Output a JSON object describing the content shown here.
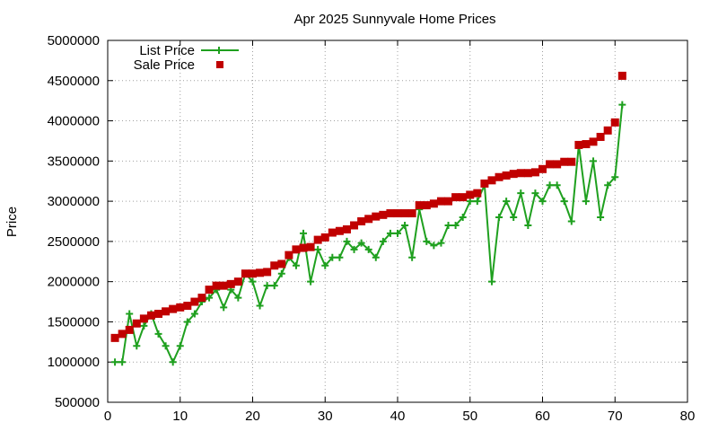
{
  "chart_data": {
    "type": "line",
    "title": "Apr 2025 Sunnyvale Home Prices",
    "xlabel": "",
    "ylabel": "Price",
    "xlim": [
      0,
      80
    ],
    "ylim": [
      500000,
      5000000
    ],
    "x_ticks": [
      "0",
      "10",
      "20",
      "30",
      "40",
      "50",
      "60",
      "70",
      "80"
    ],
    "y_ticks": [
      "500000",
      "1000000",
      "1500000",
      "2000000",
      "2500000",
      "3000000",
      "3500000",
      "4000000",
      "4500000",
      "5000000"
    ],
    "grid": true,
    "legend_position": "top-left",
    "series": [
      {
        "name": "List Price",
        "style": "line-with-plus-markers",
        "color": "#1fa01f",
        "x": [
          1,
          2,
          3,
          4,
          5,
          6,
          7,
          8,
          9,
          10,
          11,
          12,
          13,
          14,
          15,
          16,
          17,
          18,
          19,
          20,
          21,
          22,
          23,
          24,
          25,
          26,
          27,
          28,
          29,
          30,
          31,
          32,
          33,
          34,
          35,
          36,
          37,
          38,
          39,
          40,
          41,
          42,
          43,
          44,
          45,
          46,
          47,
          48,
          49,
          50,
          51,
          52,
          53,
          54,
          55,
          56,
          57,
          58,
          59,
          60,
          61,
          62,
          63,
          64,
          65,
          66,
          67,
          68,
          69,
          70,
          71
        ],
        "y": [
          1000000,
          1000000,
          1600000,
          1200000,
          1450000,
          1600000,
          1350000,
          1200000,
          1000000,
          1200000,
          1500000,
          1600000,
          1750000,
          1800000,
          1900000,
          1680000,
          1900000,
          1800000,
          2100000,
          2000000,
          1700000,
          1950000,
          1950000,
          2100000,
          2300000,
          2200000,
          2600000,
          2000000,
          2400000,
          2200000,
          2300000,
          2300000,
          2500000,
          2400000,
          2480000,
          2400000,
          2300000,
          2500000,
          2600000,
          2600000,
          2700000,
          2300000,
          2900000,
          2500000,
          2450000,
          2480000,
          2700000,
          2700000,
          2800000,
          3000000,
          3000000,
          3200000,
          2000000,
          2800000,
          3000000,
          2800000,
          3100000,
          2700000,
          3100000,
          3000000,
          3200000,
          3200000,
          3000000,
          2750000,
          3700000,
          3000000,
          3500000,
          2800000,
          3200000,
          3300000,
          4200000
        ]
      },
      {
        "name": "Sale Price",
        "style": "square-markers",
        "color": "#c00000",
        "x": [
          1,
          2,
          3,
          4,
          5,
          6,
          7,
          8,
          9,
          10,
          11,
          12,
          13,
          14,
          15,
          16,
          17,
          18,
          19,
          20,
          21,
          22,
          23,
          24,
          25,
          26,
          27,
          28,
          29,
          30,
          31,
          32,
          33,
          34,
          35,
          36,
          37,
          38,
          39,
          40,
          41,
          42,
          43,
          44,
          45,
          46,
          47,
          48,
          49,
          50,
          51,
          52,
          53,
          54,
          55,
          56,
          57,
          58,
          59,
          60,
          61,
          62,
          63,
          64,
          65,
          66,
          67,
          68,
          69,
          70,
          71
        ],
        "y": [
          1300000,
          1350000,
          1400000,
          1480000,
          1540000,
          1580000,
          1600000,
          1630000,
          1660000,
          1680000,
          1700000,
          1750000,
          1800000,
          1900000,
          1950000,
          1950000,
          1970000,
          2000000,
          2100000,
          2100000,
          2110000,
          2120000,
          2200000,
          2220000,
          2330000,
          2400000,
          2420000,
          2430000,
          2520000,
          2550000,
          2610000,
          2630000,
          2650000,
          2700000,
          2750000,
          2780000,
          2810000,
          2830000,
          2850000,
          2850000,
          2850000,
          2850000,
          2950000,
          2950000,
          2970000,
          3000000,
          3000000,
          3050000,
          3050000,
          3080000,
          3100000,
          3220000,
          3260000,
          3300000,
          3320000,
          3340000,
          3350000,
          3350000,
          3360000,
          3400000,
          3460000,
          3460000,
          3490000,
          3490000,
          3700000,
          3710000,
          3740000,
          3800000,
          3880000,
          3980000,
          4560000
        ]
      }
    ]
  }
}
